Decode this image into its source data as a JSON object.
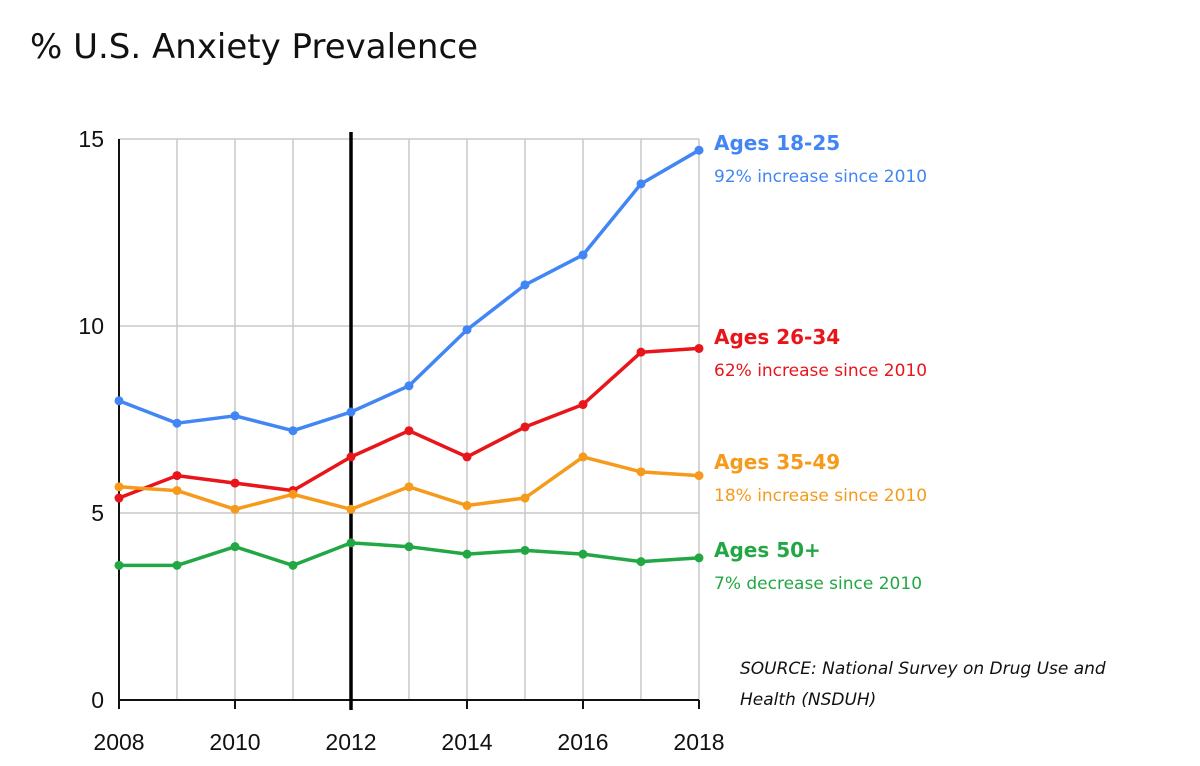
{
  "chart_data": {
    "type": "line",
    "title": "% U.S. Anxiety Prevalence",
    "x": [
      2008,
      2009,
      2010,
      2011,
      2012,
      2013,
      2014,
      2015,
      2016,
      2017,
      2018
    ],
    "x_ticks": [
      "2008",
      "2010",
      "2012",
      "2014",
      "2016",
      "2018"
    ],
    "y_ticks": [
      "0",
      "5",
      "10",
      "15"
    ],
    "xlim": [
      2008,
      2018
    ],
    "ylim": [
      0,
      15
    ],
    "grid": true,
    "reference_line_x": 2012,
    "series": [
      {
        "name": "Ages 18-25",
        "note": "92% increase since 2010",
        "color": "#4285f4",
        "values": [
          8.0,
          7.4,
          7.6,
          7.2,
          7.7,
          8.4,
          9.9,
          11.1,
          11.9,
          13.8,
          14.7
        ]
      },
      {
        "name": "Ages 26-34",
        "note": "62% increase since 2010",
        "color": "#e8151a",
        "values": [
          5.4,
          6.0,
          5.8,
          5.6,
          6.5,
          7.2,
          6.5,
          7.3,
          7.9,
          9.3,
          9.4
        ]
      },
      {
        "name": "Ages 35-49",
        "note": "18% increase since 2010",
        "color": "#f59a1b",
        "values": [
          5.7,
          5.6,
          5.1,
          5.5,
          5.1,
          5.7,
          5.2,
          5.4,
          6.5,
          6.1,
          6.0
        ]
      },
      {
        "name": "Ages 50+",
        "note": "7% decrease since 2010",
        "color": "#23a744",
        "values": [
          3.6,
          3.6,
          4.1,
          3.6,
          4.2,
          4.1,
          3.9,
          4.0,
          3.9,
          3.7,
          3.8
        ]
      }
    ],
    "source": [
      "SOURCE: National Survey on Drug Use and",
      "Health (NSDUH)"
    ]
  }
}
